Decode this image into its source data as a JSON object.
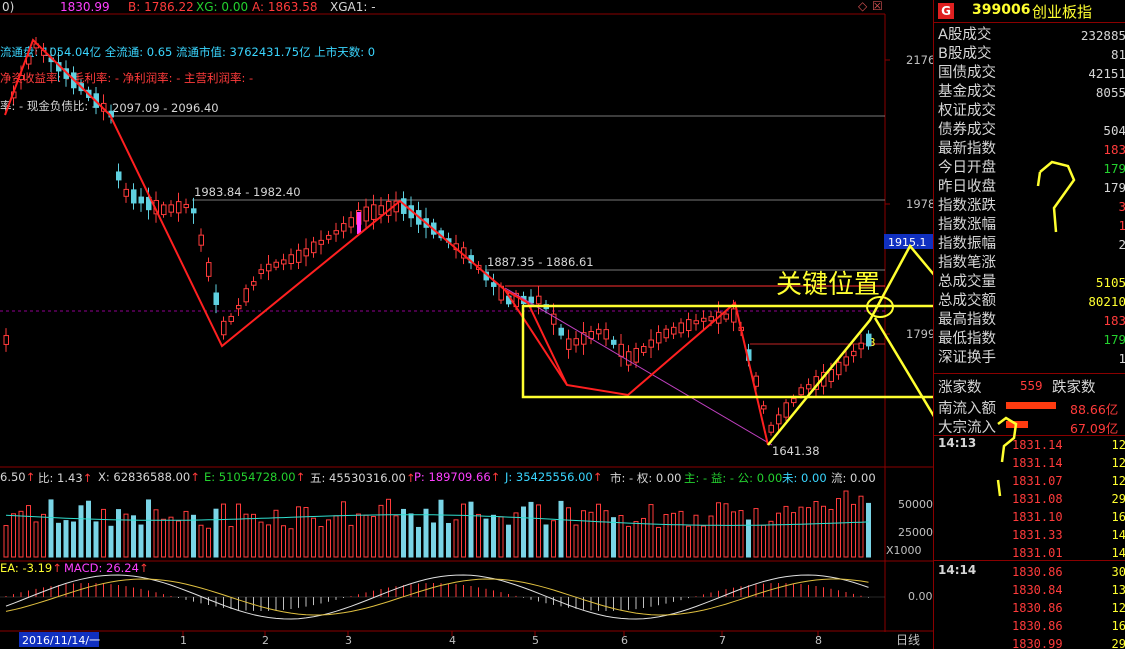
{
  "top_bar": {
    "prefix": "0)",
    "cur_label": "1830.99",
    "b_label": "B: 1786.22",
    "xg_label": "XG: 0.00",
    "a_label": "A: 1863.58",
    "xga_label": "XGA1: -"
  },
  "info_lines": {
    "line1": "流通盘: 1054.04亿  全流通: 0.65  流通市值: 3762431.75亿  上市天数: 0",
    "line2": "净资收益率: -  毛利率: -  净利润率: -  主营利润率: -",
    "line3": "率: -  现金负债比: -"
  },
  "price_axis": {
    "ticks": [
      "2176",
      "1978",
      "1799"
    ],
    "current_tag": "1915.1"
  },
  "levels": {
    "lvl1": "2097.09 - 2096.40",
    "lvl2": "1983.84 - 1982.40",
    "lvl3": "1887.35 - 1886.61",
    "low": "1641.38",
    "b_marker": "B"
  },
  "annotations": {
    "key_position": "关键位置",
    "q1": "?",
    "q2": "?"
  },
  "volume_bar": {
    "v1": "6.50",
    "v2": "比: 1.43",
    "v3": "X: 62836588.00",
    "v4": "E: 51054728.00",
    "v5": "五: 45530316.00",
    "v6": "P: 189709.66",
    "v7": "J: 35425556.00",
    "v8": "市: -  权: 0.00",
    "v9": "主: -  益: -  公: 0.00",
    "v10": "未: 0.00",
    "v11": "流: 0.00"
  },
  "volume_axis": {
    "t1": "50000",
    "t2": "25000",
    "unit": "X1000"
  },
  "macd_bar": {
    "dea": "EA: -3.19",
    "macd": "MACD: 26.24"
  },
  "macd_axis": {
    "zero": "0.00"
  },
  "x_axis": {
    "start_date": "2016/11/14/一",
    "labels": [
      "1",
      "2",
      "3",
      "4",
      "5",
      "6",
      "7",
      "8"
    ],
    "period": "日线"
  },
  "quote_panel": {
    "g_badge": "G",
    "code": "399006",
    "name": "创业板指",
    "rows": [
      {
        "label": "A股成交",
        "value": "232885",
        "color": "#d6d6d6"
      },
      {
        "label": "B股成交",
        "value": "81",
        "color": "#d6d6d6"
      },
      {
        "label": "国债成交",
        "value": "42151",
        "color": "#d6d6d6"
      },
      {
        "label": "基金成交",
        "value": "8055",
        "color": "#d6d6d6"
      },
      {
        "label": "权证成交",
        "value": "",
        "color": "#d6d6d6"
      },
      {
        "label": "债券成交",
        "value": "504",
        "color": "#d6d6d6"
      },
      {
        "label": "最新指数",
        "value": "183",
        "color": "#ff3b3b"
      },
      {
        "label": "今日开盘",
        "value": "179",
        "color": "#24d12f"
      },
      {
        "label": "昨日收盘",
        "value": "179",
        "color": "#d6d6d6"
      },
      {
        "label": "指数涨跌",
        "value": "3",
        "color": "#ff3b3b"
      },
      {
        "label": "指数涨幅",
        "value": "1",
        "color": "#ff3b3b"
      },
      {
        "label": "指数振幅",
        "value": "2",
        "color": "#d6d6d6"
      },
      {
        "label": "指数笔涨",
        "value": "",
        "color": "#d6d6d6"
      },
      {
        "label": "总成交量",
        "value": "5105",
        "color": "#ffff30"
      },
      {
        "label": "总成交额",
        "value": "80210",
        "color": "#ffff30"
      },
      {
        "label": "最高指数",
        "value": "183",
        "color": "#ff3b3b"
      },
      {
        "label": "最低指数",
        "value": "179",
        "color": "#24d12f"
      },
      {
        "label": "深证换手",
        "value": "1",
        "color": "#d6d6d6"
      }
    ],
    "rise_label": "涨家数",
    "rise_value": "559",
    "fall_label": "跌家数",
    "inflow_label": "南流入额",
    "inflow_value": "88.66亿",
    "big_label": "大宗流入",
    "big_value": "67.09亿"
  },
  "ticks": {
    "time1": "14:13",
    "group1": [
      {
        "price": "1831.14",
        "vol": "12"
      },
      {
        "price": "1831.14",
        "vol": "12"
      },
      {
        "price": "1831.07",
        "vol": "12"
      },
      {
        "price": "1831.08",
        "vol": "29"
      },
      {
        "price": "1831.10",
        "vol": "16"
      },
      {
        "price": "1831.33",
        "vol": "14"
      },
      {
        "price": "1831.01",
        "vol": "14"
      }
    ],
    "time2": "14:14",
    "group2": [
      {
        "price": "1830.86",
        "vol": "30"
      },
      {
        "price": "1830.84",
        "vol": "13"
      },
      {
        "price": "1830.86",
        "vol": "12"
      },
      {
        "price": "1830.86",
        "vol": "16"
      },
      {
        "price": "1830.99",
        "vol": "29"
      }
    ]
  },
  "colors": {
    "up": "#ff3b3b",
    "down": "#5fd0e0",
    "annotation": "#ffff30",
    "zigzag": "#ff2020",
    "background": "#000000"
  }
}
